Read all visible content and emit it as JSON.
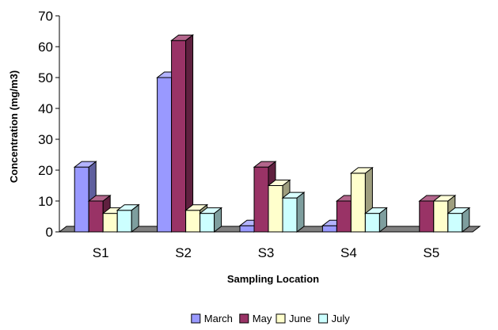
{
  "chart_data": {
    "type": "bar",
    "style": "3d-clustered-column",
    "categories": [
      "S1",
      "S2",
      "S3",
      "S4",
      "S5"
    ],
    "series": [
      {
        "name": "March",
        "values": [
          21,
          50,
          2,
          2,
          0
        ],
        "color": "#9999FF"
      },
      {
        "name": "May",
        "values": [
          10,
          62,
          21,
          10,
          10
        ],
        "color": "#993366"
      },
      {
        "name": "June",
        "values": [
          6,
          7,
          15,
          19,
          10
        ],
        "color": "#FFFFCC"
      },
      {
        "name": "July",
        "values": [
          7,
          6,
          11,
          6,
          6
        ],
        "color": "#CCFFFF"
      }
    ],
    "title": "",
    "xlabel": "Sampling Location",
    "ylabel": "Concentration (mg/m3)",
    "ylim": [
      0,
      70
    ],
    "yticks": [
      "0",
      "10",
      "20",
      "30",
      "40",
      "50",
      "60",
      "70"
    ],
    "grid": false,
    "legend_position": "bottom",
    "floor_color": "#808080",
    "edge_color": "#000000"
  }
}
